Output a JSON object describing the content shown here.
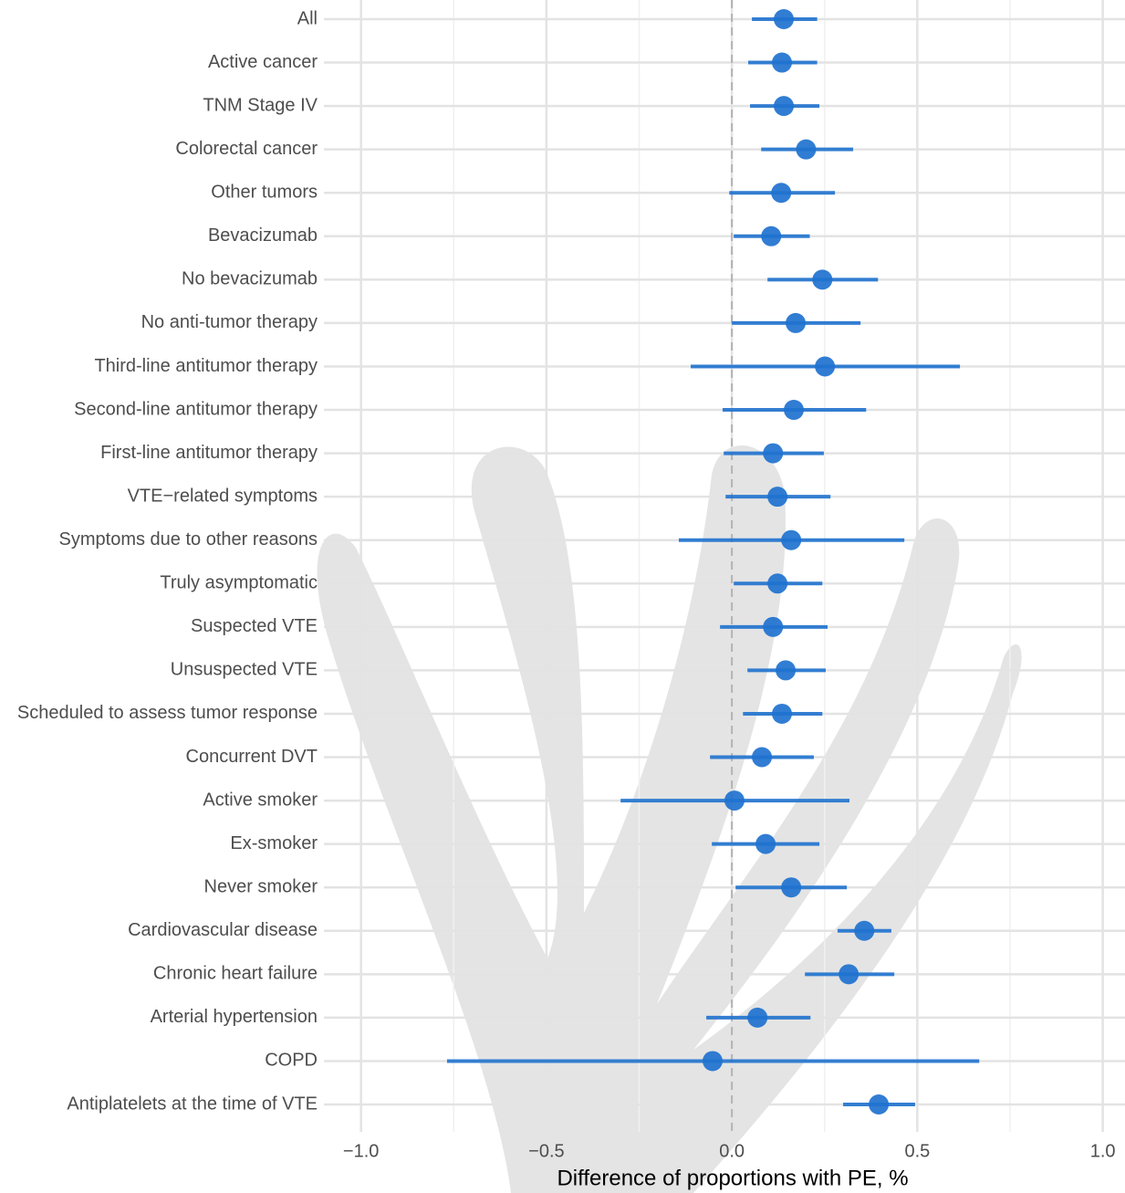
{
  "chart_data": {
    "type": "forest",
    "x_label": "Difference of proportions with PE, %",
    "categories": [
      "All",
      "Active cancer",
      "TNM Stage IV",
      "Colorectal cancer",
      "Other tumors",
      "Bevacizumab",
      "No bevacizumab",
      "No anti-tumor therapy",
      "Third-line antitumor therapy",
      "Second-line antitumor therapy",
      "First-line antitumor therapy",
      "VTE−related symptoms",
      "Symptoms due to other reasons",
      "Truly asymptomatic",
      "Suspected VTE",
      "Unsuspected VTE",
      "Scheduled to assess tumor response",
      "Concurrent DVT",
      "Active smoker",
      "Ex-smoker",
      "Never smoker",
      "Cardiovascular disease",
      "Chronic heart failure",
      "Arterial hypertension",
      "COPD",
      "Antiplatelets at the time of VTE"
    ],
    "values": [
      0.14,
      0.135,
      0.14,
      0.2,
      0.133,
      0.106,
      0.244,
      0.172,
      0.251,
      0.167,
      0.111,
      0.123,
      0.16,
      0.123,
      0.111,
      0.145,
      0.135,
      0.081,
      0.007,
      0.091,
      0.16,
      0.357,
      0.315,
      0.069,
      -0.052,
      0.396
    ],
    "lower": [
      0.054,
      0.044,
      0.049,
      0.079,
      -0.007,
      0.005,
      0.096,
      0.0,
      -0.111,
      -0.025,
      -0.022,
      -0.017,
      -0.143,
      0.005,
      -0.032,
      0.042,
      0.03,
      -0.059,
      -0.3,
      -0.054,
      0.01,
      0.285,
      0.197,
      -0.069,
      -0.768,
      0.3
    ],
    "upper": [
      0.23,
      0.23,
      0.236,
      0.327,
      0.278,
      0.21,
      0.394,
      0.347,
      0.615,
      0.362,
      0.248,
      0.266,
      0.465,
      0.244,
      0.258,
      0.253,
      0.244,
      0.221,
      0.317,
      0.236,
      0.31,
      0.43,
      0.438,
      0.212,
      0.667,
      0.494
    ],
    "color": "#1f72cf",
    "xlim": [
      -1.1,
      1.06
    ],
    "xticks": [
      {
        "value": -1,
        "label": "−1.0"
      },
      {
        "value": -0.5,
        "label": "−0.5"
      },
      {
        "value": 0,
        "label": "0.0"
      },
      0.5,
      {
        "value": 1,
        "label": "1.0"
      }
    ],
    "grid": true
  }
}
